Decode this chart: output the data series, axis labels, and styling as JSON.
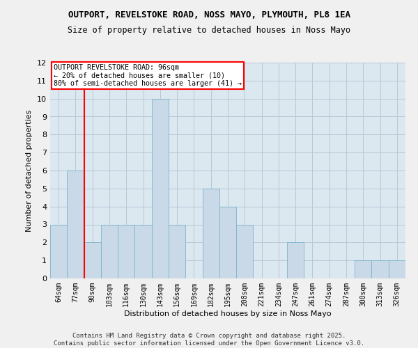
{
  "title": "OUTPORT, REVELSTOKE ROAD, NOSS MAYO, PLYMOUTH, PL8 1EA",
  "subtitle": "Size of property relative to detached houses in Noss Mayo",
  "xlabel": "Distribution of detached houses by size in Noss Mayo",
  "ylabel": "Number of detached properties",
  "categories": [
    "64sqm",
    "77sqm",
    "90sqm",
    "103sqm",
    "116sqm",
    "130sqm",
    "143sqm",
    "156sqm",
    "169sqm",
    "182sqm",
    "195sqm",
    "208sqm",
    "221sqm",
    "234sqm",
    "247sqm",
    "261sqm",
    "274sqm",
    "287sqm",
    "300sqm",
    "313sqm",
    "326sqm"
  ],
  "values": [
    3,
    6,
    2,
    3,
    3,
    3,
    10,
    3,
    0,
    5,
    4,
    3,
    0,
    0,
    2,
    0,
    0,
    0,
    1,
    1,
    1
  ],
  "bar_color": "#c9d9e8",
  "bar_edge_color": "#7ab4cc",
  "grid_color": "#b8c8d8",
  "background_color": "#dce8f0",
  "annotation_box_text": "OUTPORT REVELSTOKE ROAD: 96sqm\n← 20% of detached houses are smaller (10)\n80% of semi-detached houses are larger (41) →",
  "red_line_x": 1.5,
  "ylim": [
    0,
    12
  ],
  "yticks": [
    0,
    1,
    2,
    3,
    4,
    5,
    6,
    7,
    8,
    9,
    10,
    11,
    12
  ],
  "fig_bg": "#f0f0f0",
  "footer_line1": "Contains HM Land Registry data © Crown copyright and database right 2025.",
  "footer_line2": "Contains public sector information licensed under the Open Government Licence v3.0."
}
